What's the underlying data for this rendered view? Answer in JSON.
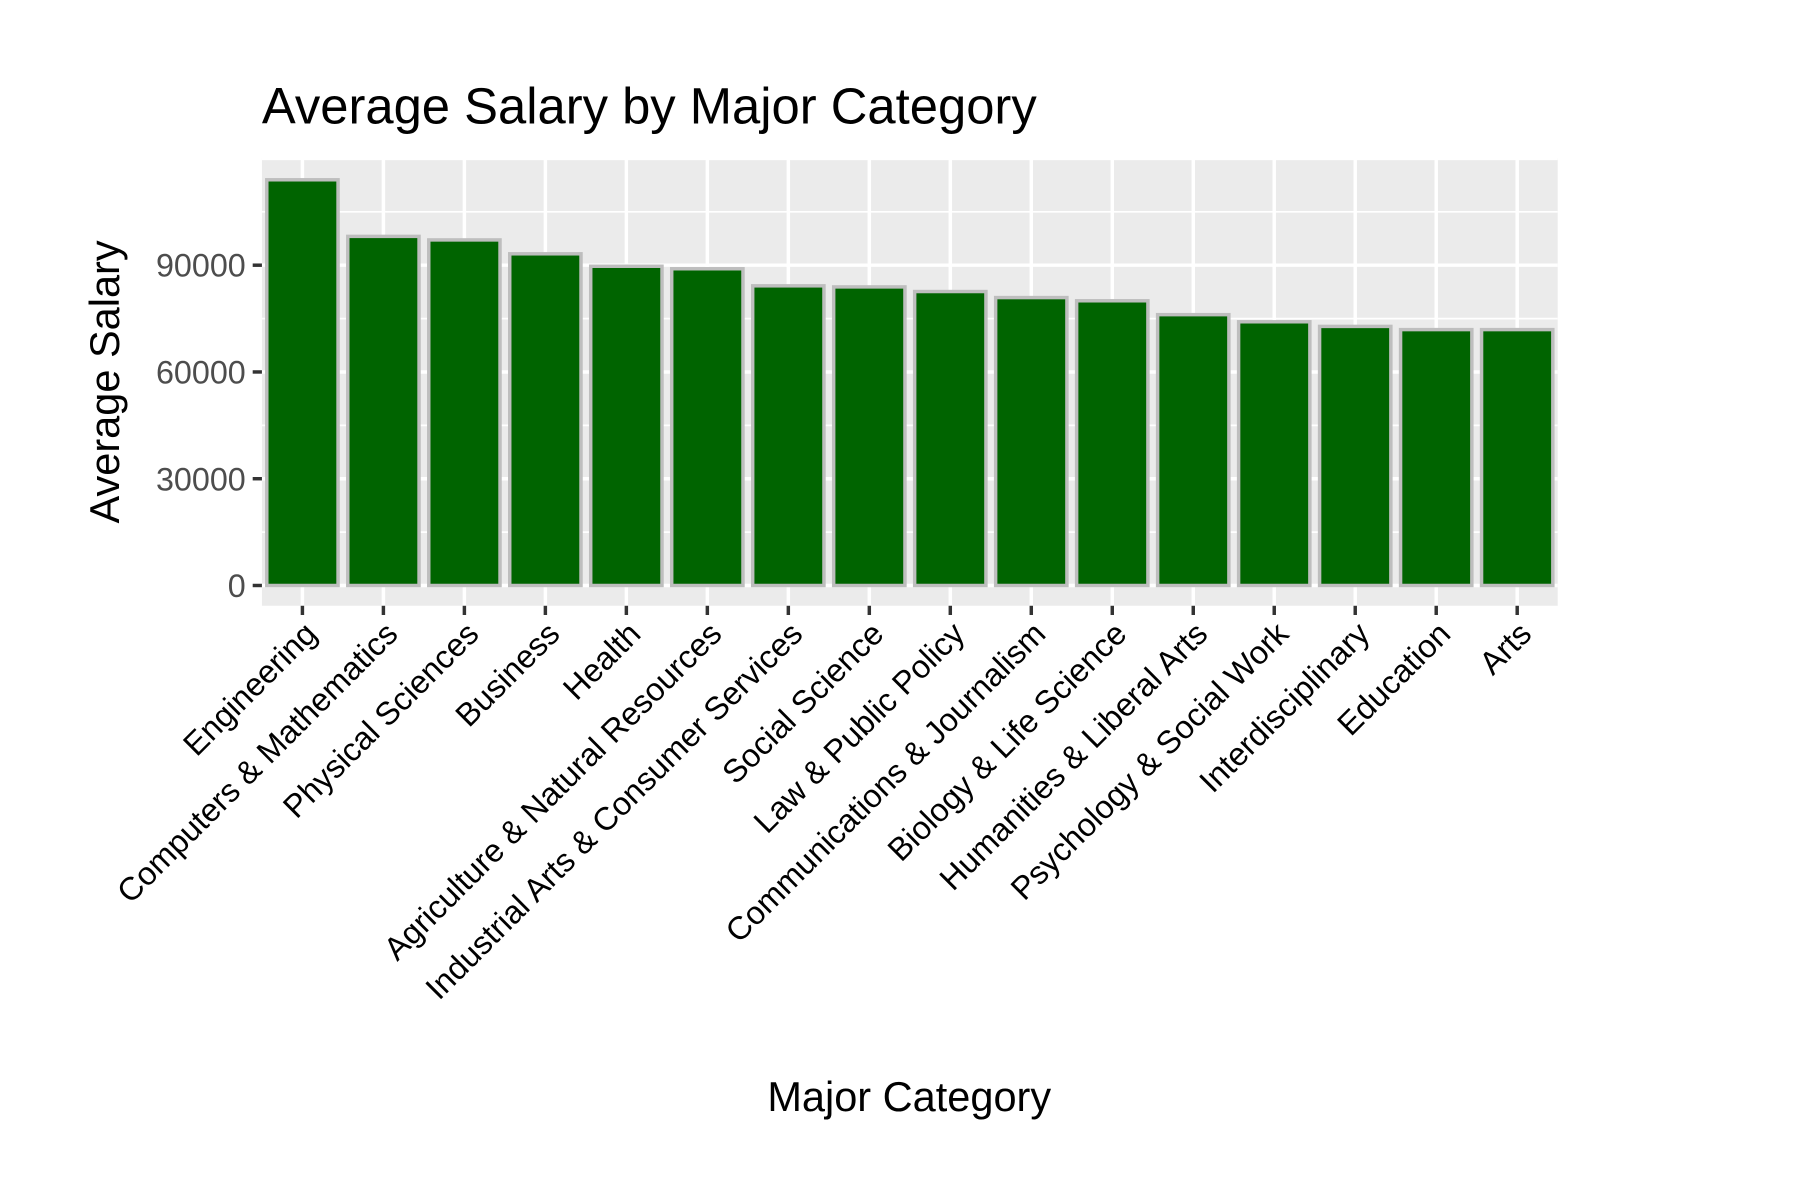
{
  "chart_data": {
    "type": "bar",
    "title": "Average Salary by Major Category",
    "xlabel": "Major Category",
    "ylabel": "Average Salary",
    "categories": [
      "Engineering",
      "Computers & Mathematics",
      "Physical Sciences",
      "Business",
      "Health",
      "Agriculture & Natural Resources",
      "Industrial Arts & Consumer Services",
      "Social Science",
      "Law & Public Policy",
      "Communications & Journalism",
      "Biology & Life Science",
      "Humanities & Liberal Arts",
      "Psychology & Social Work",
      "Interdisciplinary",
      "Education",
      "Arts"
    ],
    "values": [
      114000,
      98100,
      97100,
      93200,
      89700,
      89000,
      84200,
      83900,
      82600,
      80900,
      80000,
      76100,
      74100,
      72800,
      71900,
      71900
    ],
    "yticks": [
      0,
      30000,
      60000,
      90000
    ],
    "ylim": [
      -5700,
      120100
    ],
    "grid": true,
    "bar_fill": "#006400",
    "bar_outline": "#bebebe",
    "panel_background": "#ebebeb"
  }
}
